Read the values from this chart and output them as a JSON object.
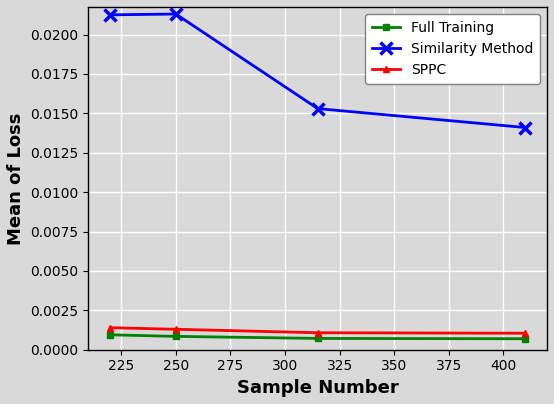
{
  "x": [
    220,
    250,
    315,
    410
  ],
  "full_training": [
    0.00095,
    0.00085,
    0.00072,
    0.0007
  ],
  "similarity_method": [
    0.02125,
    0.0213,
    0.0153,
    0.0141
  ],
  "sppc": [
    0.0014,
    0.0013,
    0.00108,
    0.00105
  ],
  "full_training_color": "#008000",
  "similarity_method_color": "#0000FF",
  "sppc_color": "#FF0000",
  "xlabel": "Sample Number",
  "ylabel": "Mean of Loss",
  "xlabel_fontsize": 13,
  "ylabel_fontsize": 13,
  "tick_fontsize": 10,
  "legend_labels": [
    "Full Training",
    "Similarity Method",
    "SPPC"
  ],
  "ylim": [
    0.0,
    0.02175
  ],
  "xlim": [
    210,
    420
  ],
  "yticks": [
    0.0,
    0.0025,
    0.005,
    0.0075,
    0.01,
    0.0125,
    0.015,
    0.0175,
    0.02
  ],
  "xticks": [
    225,
    250,
    275,
    300,
    325,
    350,
    375,
    400
  ],
  "grid": true,
  "background_color": "#d9d9d9"
}
